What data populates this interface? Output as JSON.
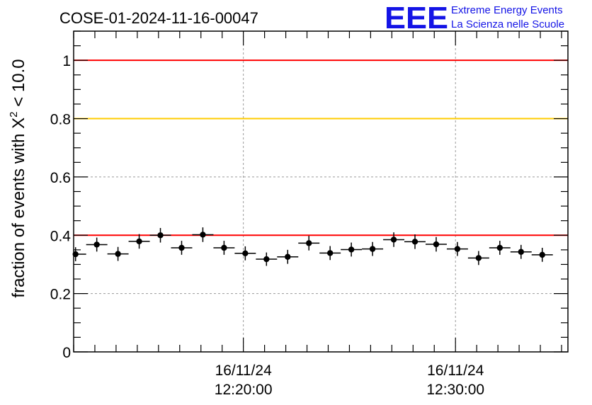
{
  "header": {
    "title": "COSE-01-2024-11-16-00047",
    "logo_text": "EEE",
    "logo_line1": "Extreme Energy Events",
    "logo_line2": "La Scienza nelle Scuole",
    "logo_color": "#1414e6"
  },
  "chart_data": {
    "type": "scatter",
    "title": "COSE-01-2024-11-16-00047",
    "ylabel_prefix": "fraction of events with ",
    "ylabel_symbol": "X",
    "ylabel_sup": "2",
    "ylabel_suffix": " < 10.0",
    "xlabel": "",
    "x_unit": "minutes after 16/11/24 12:00:00",
    "xlim": [
      12.0,
      35.3
    ],
    "ylim": [
      0,
      1.1
    ],
    "y_ticks": [
      0,
      0.2,
      0.4,
      0.6,
      0.8,
      1
    ],
    "y_tick_labels": [
      "0",
      "0.2",
      "0.4",
      "0.6",
      "0.8",
      "1"
    ],
    "x_ticks": [
      {
        "x": 20.0,
        "date": "16/11/24",
        "time": "12:20:00"
      },
      {
        "x": 30.0,
        "date": "16/11/24",
        "time": "12:30:00"
      }
    ],
    "x_minor_step": 1.0,
    "grid": true,
    "reference_lines": [
      {
        "y": 1.0,
        "color": "#ff0000"
      },
      {
        "y": 0.8,
        "color": "#ffcc00"
      },
      {
        "y": 0.4,
        "color": "#ff0000"
      }
    ],
    "points": [
      {
        "x": 12.09,
        "y": 0.335,
        "yerr": 0.024
      },
      {
        "x": 13.09,
        "y": 0.368,
        "yerr": 0.024
      },
      {
        "x": 14.09,
        "y": 0.336,
        "yerr": 0.024
      },
      {
        "x": 15.09,
        "y": 0.379,
        "yerr": 0.025
      },
      {
        "x": 16.09,
        "y": 0.4,
        "yerr": 0.025
      },
      {
        "x": 17.09,
        "y": 0.357,
        "yerr": 0.024
      },
      {
        "x": 18.09,
        "y": 0.402,
        "yerr": 0.025
      },
      {
        "x": 19.09,
        "y": 0.357,
        "yerr": 0.024
      },
      {
        "x": 20.09,
        "y": 0.338,
        "yerr": 0.024
      },
      {
        "x": 21.09,
        "y": 0.318,
        "yerr": 0.023
      },
      {
        "x": 22.09,
        "y": 0.326,
        "yerr": 0.024
      },
      {
        "x": 23.09,
        "y": 0.373,
        "yerr": 0.025
      },
      {
        "x": 24.09,
        "y": 0.339,
        "yerr": 0.024
      },
      {
        "x": 25.09,
        "y": 0.351,
        "yerr": 0.024
      },
      {
        "x": 26.09,
        "y": 0.353,
        "yerr": 0.024
      },
      {
        "x": 27.09,
        "y": 0.385,
        "yerr": 0.025
      },
      {
        "x": 28.09,
        "y": 0.378,
        "yerr": 0.025
      },
      {
        "x": 29.09,
        "y": 0.369,
        "yerr": 0.025
      },
      {
        "x": 30.09,
        "y": 0.353,
        "yerr": 0.024
      },
      {
        "x": 31.09,
        "y": 0.322,
        "yerr": 0.024
      },
      {
        "x": 32.09,
        "y": 0.357,
        "yerr": 0.024
      },
      {
        "x": 33.09,
        "y": 0.343,
        "yerr": 0.024
      },
      {
        "x": 34.09,
        "y": 0.333,
        "yerr": 0.024
      }
    ],
    "point_color": "#000000"
  }
}
